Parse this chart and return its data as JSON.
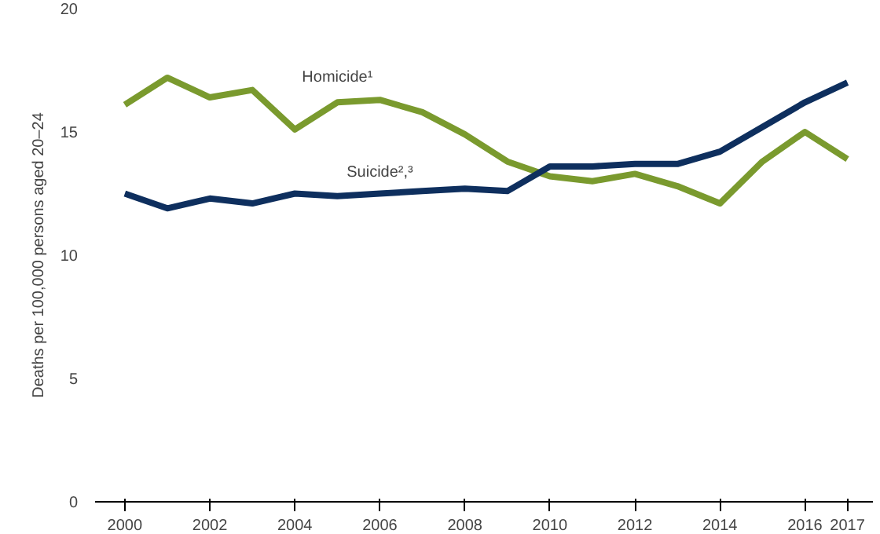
{
  "chart_data": {
    "type": "line",
    "ylabel": "Deaths per 100,000 persons aged 20–24",
    "x": [
      2000,
      2001,
      2002,
      2003,
      2004,
      2005,
      2006,
      2007,
      2008,
      2009,
      2010,
      2011,
      2012,
      2013,
      2014,
      2015,
      2016,
      2017
    ],
    "series": [
      {
        "name": "Homicide¹",
        "color": "#7a9a2e",
        "values": [
          16.1,
          17.2,
          16.4,
          16.7,
          15.1,
          16.2,
          16.3,
          15.8,
          14.9,
          13.8,
          13.2,
          13.0,
          13.3,
          12.8,
          12.1,
          13.8,
          15.0,
          13.9
        ]
      },
      {
        "name": "Suicide²,³",
        "color": "#0e2f5e",
        "values": [
          12.5,
          11.9,
          12.3,
          12.1,
          12.5,
          12.4,
          12.5,
          12.6,
          12.7,
          12.6,
          13.6,
          13.6,
          13.7,
          13.7,
          14.2,
          15.2,
          16.2,
          17.0
        ]
      }
    ],
    "xlim": [
      1999.3,
      2017.6
    ],
    "ylim": [
      0,
      20
    ],
    "xticks": [
      2000,
      2002,
      2004,
      2006,
      2008,
      2010,
      2012,
      2014,
      2016,
      2017
    ],
    "yticks": [
      0,
      5,
      10,
      15,
      20
    ],
    "grid": false,
    "marker": "none",
    "line_style": "solid"
  }
}
